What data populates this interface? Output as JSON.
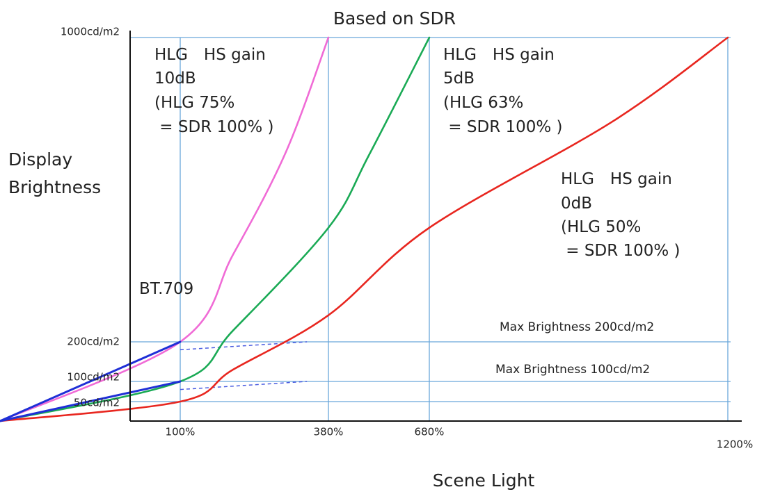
{
  "chart_data": {
    "type": "line",
    "title": "Based on SDR",
    "xlabel": "Scene Light",
    "ylabel_lines": [
      "Display",
      "Brightness"
    ],
    "x_ticks": [
      {
        "label": "100%",
        "value": 100
      },
      {
        "label": "380%",
        "value": 380
      },
      {
        "label": "680%",
        "value": 680
      },
      {
        "label": "1200%",
        "value": 1200
      }
    ],
    "y_ticks": [
      {
        "label": "50cd/m2",
        "value": 50
      },
      {
        "label": "100cd/m2",
        "value": 100
      },
      {
        "label": "200cd/m2",
        "value": 200
      },
      {
        "label": "1000cd/m2",
        "value": 1000
      }
    ],
    "xlim": [
      0,
      1200
    ],
    "ylim": [
      0,
      1000
    ],
    "grid": "lines at tick values",
    "series": [
      {
        "name": "HLG HS gain 10dB",
        "color": "#f06bd6",
        "x": [
          0,
          100,
          200,
          300,
          380
        ],
        "y": [
          0,
          200,
          430,
          700,
          1000
        ]
      },
      {
        "name": "HLG HS gain 5dB",
        "color": "#1aaa55",
        "x": [
          0,
          100,
          200,
          380,
          500,
          680
        ],
        "y": [
          0,
          100,
          230,
          500,
          690,
          1000
        ]
      },
      {
        "name": "HLG HS gain 0dB",
        "color": "#e8261f",
        "x": [
          0,
          100,
          200,
          380,
          680,
          1000,
          1200
        ],
        "y": [
          0,
          50,
          130,
          270,
          500,
          780,
          1000
        ]
      },
      {
        "name": "BT.709",
        "color": "#1f2fd6",
        "x": [
          0,
          100
        ],
        "y": [
          0,
          200
        ]
      },
      {
        "name": "BT.709",
        "color": "#1f2fd6",
        "x": [
          0,
          100
        ],
        "y": [
          0,
          100
        ]
      }
    ],
    "dashed_lines": [
      {
        "color": "#4a5ce0",
        "x": [
          100,
          300
        ],
        "y": [
          180,
          200
        ]
      },
      {
        "color": "#4a5ce0",
        "x": [
          100,
          300
        ],
        "y": [
          80,
          100
        ]
      }
    ],
    "annotations": [
      {
        "lines": [
          "HLG　HS gain",
          "10dB",
          "(HLG 75%",
          " = SDR 100% )"
        ]
      },
      {
        "lines": [
          "HLG　HS gain",
          "5dB",
          "(HLG 63%",
          " = SDR 100% )"
        ]
      },
      {
        "lines": [
          "HLG　HS gain",
          "0dB",
          "(HLG 50%",
          " = SDR 100% )"
        ]
      },
      {
        "lines": [
          "BT.709"
        ]
      }
    ],
    "reference_labels": [
      {
        "text": "Max Brightness 200cd/m2",
        "y": 200
      },
      {
        "text": "Max Brightness 100cd/m2",
        "y": 100
      }
    ]
  }
}
